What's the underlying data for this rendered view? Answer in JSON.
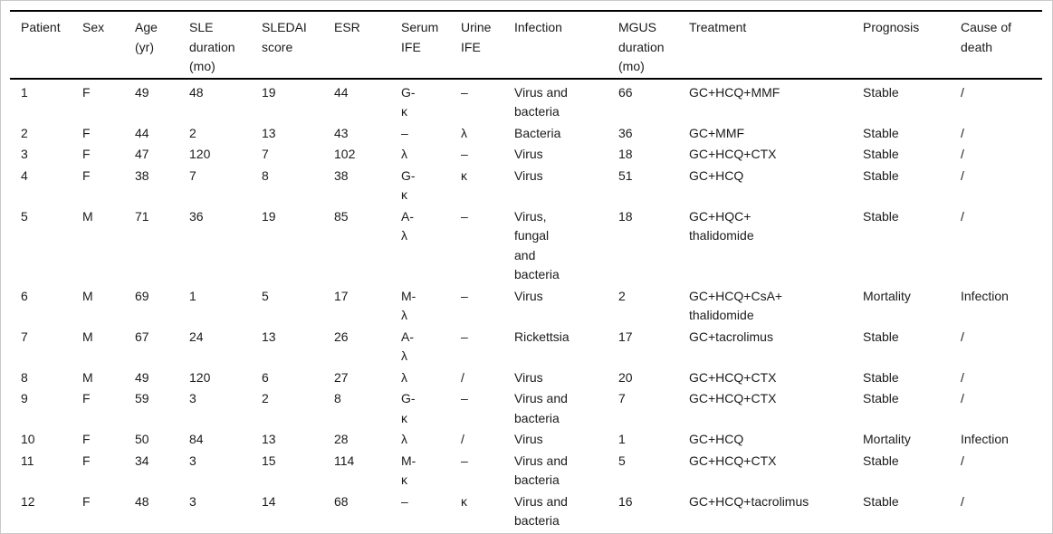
{
  "colors": {
    "text": "#1b1b1b",
    "rule": "#000000",
    "outer_border": "#c9c9c9",
    "background": "#ffffff"
  },
  "table": {
    "columns": [
      "Patient",
      "Sex",
      "Age\n(yr)",
      "SLE\nduration\n(mo)",
      "SLEDAI\nscore",
      "ESR",
      "Serum\nIFE",
      "Urine\nIFE",
      "Infection",
      "MGUS\nduration\n(mo)",
      "Treatment",
      "Prognosis",
      "Cause of\ndeath"
    ],
    "rows": [
      [
        "1",
        "F",
        "49",
        "48",
        "19",
        "44",
        "G-\nκ",
        "–",
        "Virus and\nbacteria",
        "66",
        "GC+HCQ+MMF",
        "Stable",
        "/"
      ],
      [
        "2",
        "F",
        "44",
        "2",
        "13",
        "43",
        "–",
        "λ",
        "Bacteria",
        "36",
        "GC+MMF",
        "Stable",
        "/"
      ],
      [
        "3",
        "F",
        "47",
        "120",
        "7",
        "102",
        "λ",
        "–",
        "Virus",
        "18",
        "GC+HCQ+CTX",
        "Stable",
        "/"
      ],
      [
        "4",
        "F",
        "38",
        "7",
        "8",
        "38",
        "G-\nκ",
        "κ",
        "Virus",
        "51",
        "GC+HCQ",
        "Stable",
        "/"
      ],
      [
        "5",
        "M",
        "71",
        "36",
        "19",
        "85",
        "A-\nλ",
        "–",
        "Virus,\nfungal\nand\nbacteria",
        "18",
        "GC+HQC+\nthalidomide",
        "Stable",
        "/"
      ],
      [
        "6",
        "M",
        "69",
        "1",
        "5",
        "17",
        "M-\nλ",
        "–",
        "Virus",
        "2",
        "GC+HCQ+CsA+\nthalidomide",
        "Mortality",
        "Infection"
      ],
      [
        "7",
        "M",
        "67",
        "24",
        "13",
        "26",
        "A-\nλ",
        "–",
        "Rickettsia",
        "17",
        "GC+tacrolimus",
        "Stable",
        "/"
      ],
      [
        "8",
        "M",
        "49",
        "120",
        "6",
        "27",
        "λ",
        "/",
        "Virus",
        "20",
        "GC+HCQ+CTX",
        "Stable",
        "/"
      ],
      [
        "9",
        "F",
        "59",
        "3",
        "2",
        "8",
        "G-\nκ",
        "–",
        "Virus and\nbacteria",
        "7",
        "GC+HCQ+CTX",
        "Stable",
        "/"
      ],
      [
        "10",
        "F",
        "50",
        "84",
        "13",
        "28",
        "λ",
        "/",
        "Virus",
        "1",
        "GC+HCQ",
        "Mortality",
        "Infection"
      ],
      [
        "11",
        "F",
        "34",
        "3",
        "15",
        "114",
        "M-\nκ",
        "–",
        "Virus and\nbacteria",
        "5",
        "GC+HCQ+CTX",
        "Stable",
        "/"
      ],
      [
        "12",
        "F",
        "48",
        "3",
        "14",
        "68",
        "–",
        "κ",
        "Virus and\nbacteria",
        "16",
        "GC+HCQ+tacrolimus",
        "Stable",
        "/"
      ]
    ]
  }
}
